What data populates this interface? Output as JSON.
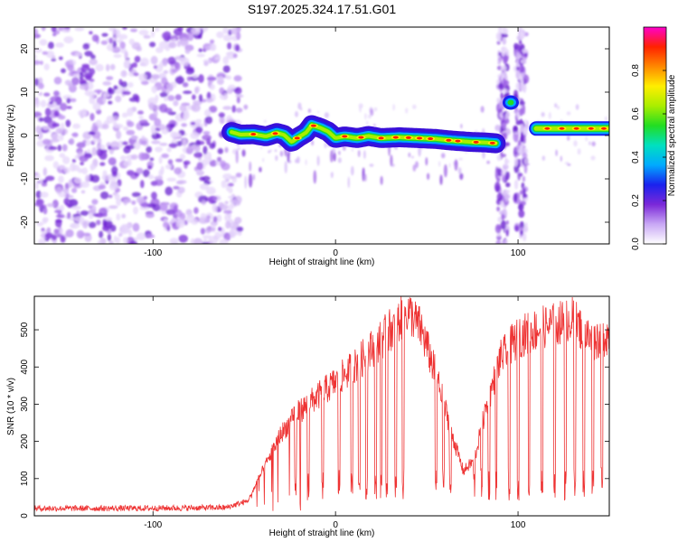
{
  "title": "S197.2025.324.17.51.G01",
  "chart_data": [
    {
      "type": "heatmap",
      "xlabel": "Height of straight line (km)",
      "ylabel": "Frequency (Hz)",
      "xlim": [
        -165,
        150
      ],
      "ylim": [
        -25,
        25
      ],
      "xticks": [
        -100,
        0,
        100
      ],
      "yticks": [
        -20,
        -10,
        0,
        10,
        20
      ],
      "colorbar": {
        "label": "Normalized spectral amplitude",
        "range": [
          0,
          1
        ],
        "ticks": [
          0.0,
          0.2,
          0.4,
          0.6,
          0.8
        ],
        "colormap": [
          "#ffffff",
          "#c9a8f5",
          "#7b28d8",
          "#1a22ee",
          "#00aaff",
          "#00e0c0",
          "#22dd22",
          "#aaee00",
          "#ffee00",
          "#ff8800",
          "#ff2200",
          "#ff00cc"
        ]
      },
      "noise_region_km": [
        -165,
        -55
      ],
      "ridge": [
        [
          -57,
          0.8
        ],
        [
          -52,
          0.2
        ],
        [
          -45,
          0.3
        ],
        [
          -38,
          -0.2
        ],
        [
          -32,
          0.6
        ],
        [
          -28,
          0.1
        ],
        [
          -24,
          -1.5
        ],
        [
          -20,
          -0.3
        ],
        [
          -16,
          0.7
        ],
        [
          -13,
          2.4
        ],
        [
          -8,
          1.7
        ],
        [
          -4,
          0.9
        ],
        [
          0,
          -0.6
        ],
        [
          5,
          -0.2
        ],
        [
          12,
          -0.6
        ],
        [
          18,
          -0.1
        ],
        [
          25,
          -0.6
        ],
        [
          35,
          -0.4
        ],
        [
          45,
          -0.6
        ],
        [
          55,
          -0.8
        ],
        [
          62,
          -1.1
        ],
        [
          68,
          -1.3
        ],
        [
          75,
          -1.5
        ],
        [
          82,
          -1.6
        ],
        [
          88,
          -1.8
        ]
      ],
      "gap_streaks_km": [
        90,
        101
      ],
      "burst": {
        "x_km": 96,
        "freq_hz": 7.6
      },
      "right_segment": {
        "x_range_km": [
          110,
          150
        ],
        "freq_hz": 1.6
      }
    },
    {
      "type": "line",
      "xlabel": "Height of straight line (km)",
      "ylabel": "SNR (10 * v/v)",
      "xlim": [
        -165,
        150
      ],
      "ylim": [
        0,
        590
      ],
      "xticks": [
        -100,
        0,
        100
      ],
      "yticks": [
        0,
        100,
        200,
        300,
        400,
        500
      ],
      "line_color": "#ee3333",
      "trend": [
        [
          -165,
          20
        ],
        [
          -110,
          20
        ],
        [
          -60,
          22
        ],
        [
          -48,
          40
        ],
        [
          -40,
          120
        ],
        [
          -30,
          220
        ],
        [
          -20,
          280
        ],
        [
          -10,
          320
        ],
        [
          0,
          360
        ],
        [
          10,
          400
        ],
        [
          20,
          450
        ],
        [
          30,
          500
        ],
        [
          40,
          550
        ],
        [
          47,
          500
        ],
        [
          55,
          380
        ],
        [
          60,
          290
        ],
        [
          65,
          200
        ],
        [
          70,
          120
        ],
        [
          76,
          150
        ],
        [
          82,
          280
        ],
        [
          90,
          420
        ],
        [
          100,
          480
        ],
        [
          110,
          500
        ],
        [
          120,
          515
        ],
        [
          130,
          530
        ],
        [
          140,
          470
        ],
        [
          150,
          490
        ]
      ],
      "dropouts_km": [
        -22,
        -15,
        -7,
        2,
        9,
        13,
        17,
        22,
        25,
        28,
        33,
        37,
        55,
        59,
        63,
        76,
        80,
        84,
        88,
        95,
        100,
        106,
        113,
        120,
        126,
        131,
        136,
        141,
        146
      ]
    }
  ]
}
